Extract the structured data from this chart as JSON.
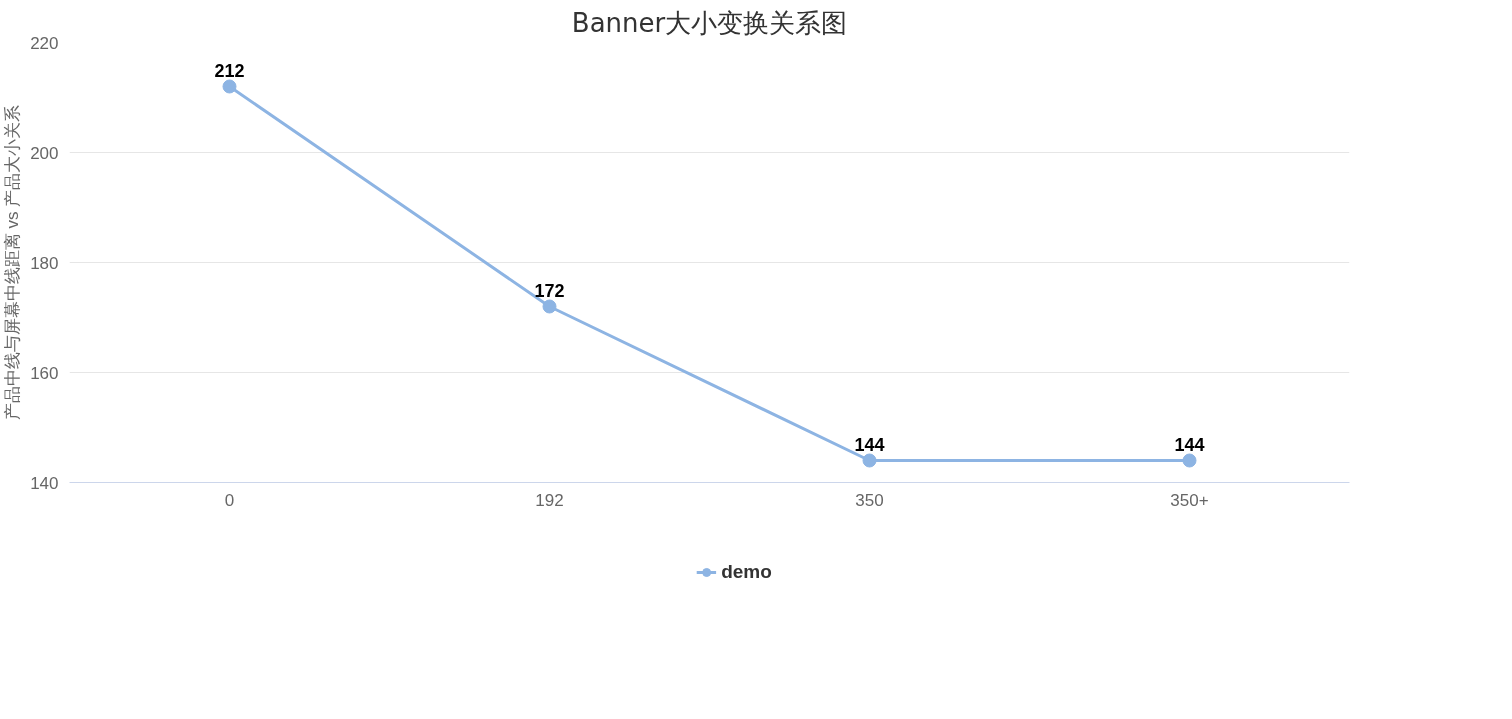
{
  "chart_data": {
    "type": "line",
    "title": "Banner大小变换关系图",
    "ylabel": "产品中线与屏幕中线距离 vs 产品大小关系",
    "categories": [
      "0",
      "192",
      "350",
      "350+"
    ],
    "series": [
      {
        "name": "demo",
        "color": "#8db4e3",
        "values": [
          212,
          172,
          144,
          144
        ]
      }
    ],
    "ylim": [
      140,
      220
    ],
    "yticks": [
      140,
      160,
      180,
      200,
      220
    ],
    "grid": "y",
    "legend": "bottom",
    "marker": "circle",
    "line_style": "solid",
    "data_labels": true
  }
}
